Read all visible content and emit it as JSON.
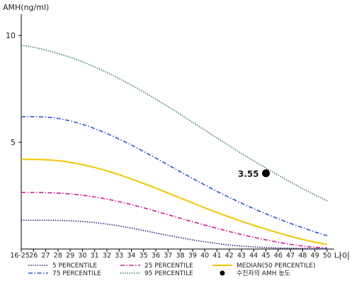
{
  "chart_data": {
    "type": "line",
    "ylabel": "AMH(ng/ml)",
    "xlabel": "나이",
    "ylim": [
      0,
      11
    ],
    "yticks": [
      5,
      10
    ],
    "grid": false,
    "legend_position": "bottom",
    "categories": [
      "16-25",
      "26",
      "27",
      "28",
      "29",
      "30",
      "31",
      "32",
      "33",
      "34",
      "35",
      "36",
      "37",
      "38",
      "39",
      "40",
      "41",
      "42",
      "43",
      "44",
      "45",
      "46",
      "47",
      "48",
      "49",
      "50"
    ],
    "series": [
      {
        "name": "5 PERCENTILE",
        "color": "#1a1a7a",
        "dash": "dot",
        "values": [
          1.35,
          1.35,
          1.35,
          1.34,
          1.32,
          1.29,
          1.24,
          1.17,
          1.08,
          0.98,
          0.87,
          0.75,
          0.64,
          0.53,
          0.43,
          0.34,
          0.26,
          0.19,
          0.14,
          0.1,
          0.07,
          0.05,
          0.04,
          0.03,
          0.02,
          0.02
        ]
      },
      {
        "name": "25 PERCENTILE",
        "color": "#d6188c",
        "dash": "dashdot",
        "values": [
          2.65,
          2.65,
          2.64,
          2.62,
          2.58,
          2.52,
          2.44,
          2.34,
          2.22,
          2.08,
          1.93,
          1.77,
          1.61,
          1.44,
          1.28,
          1.12,
          0.97,
          0.82,
          0.68,
          0.55,
          0.43,
          0.32,
          0.22,
          0.14,
          0.08,
          0.05
        ]
      },
      {
        "name": "MEDIAN(50 PERCENTILE)",
        "color": "#f2c500",
        "dash": "solid",
        "values": [
          4.2,
          4.2,
          4.18,
          4.14,
          4.06,
          3.95,
          3.82,
          3.66,
          3.48,
          3.28,
          3.07,
          2.85,
          2.62,
          2.39,
          2.16,
          1.93,
          1.71,
          1.5,
          1.3,
          1.11,
          0.93,
          0.76,
          0.6,
          0.45,
          0.32,
          0.22
        ]
      },
      {
        "name": "75 PERCENTILE",
        "color": "#2e55c8",
        "dash": "dashdot",
        "values": [
          6.2,
          6.2,
          6.18,
          6.12,
          6.0,
          5.84,
          5.64,
          5.41,
          5.15,
          4.87,
          4.57,
          4.26,
          3.94,
          3.62,
          3.31,
          3.0,
          2.7,
          2.42,
          2.15,
          1.89,
          1.65,
          1.42,
          1.2,
          1.0,
          0.8,
          0.62
        ]
      },
      {
        "name": "95 PERCENTILE",
        "color": "#2d7a4e",
        "dash": "dot",
        "values": [
          9.55,
          9.45,
          9.32,
          9.16,
          8.98,
          8.77,
          8.53,
          8.27,
          7.98,
          7.68,
          7.36,
          7.02,
          6.67,
          6.31,
          5.94,
          5.57,
          5.2,
          4.84,
          4.48,
          4.13,
          3.79,
          3.46,
          3.14,
          2.83,
          2.54,
          2.26
        ]
      }
    ],
    "annotation": {
      "x": "45",
      "y": 3.55,
      "label": "3.55",
      "legend_label": "수진자의 AMH 농도",
      "color": "#000000"
    }
  }
}
